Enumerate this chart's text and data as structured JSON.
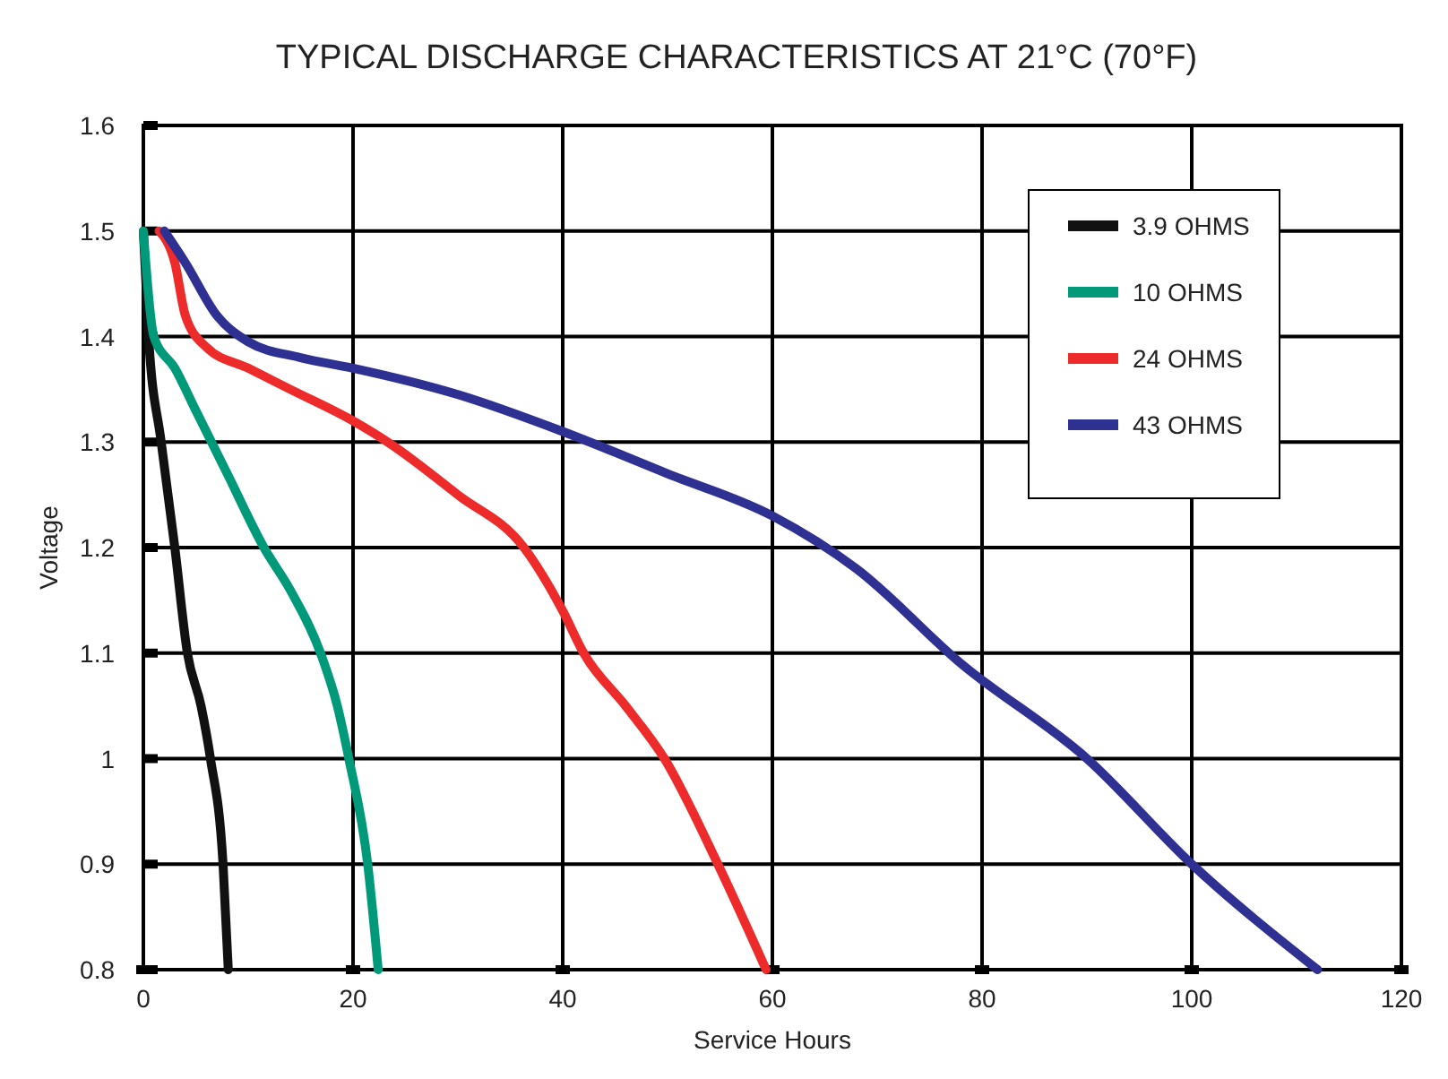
{
  "chart_data": {
    "type": "line",
    "title": "TYPICAL DISCHARGE CHARACTERISTICS AT 21°C (70°F)",
    "xlabel": "Service Hours",
    "ylabel": "Voltage",
    "xlim": [
      0,
      120
    ],
    "xticks": [
      0,
      20,
      40,
      60,
      80,
      100,
      120
    ],
    "ylim": [
      0.8,
      1.6
    ],
    "yticks": [
      0.8,
      0.9,
      1,
      1.1,
      1.2,
      1.3,
      1.4,
      1.5,
      1.6
    ],
    "grid": true,
    "legend": "top right",
    "line_style": "solid",
    "marker": "none",
    "series": [
      {
        "name": "3.9 OHMS",
        "color": "#111111",
        "x": [
          0,
          0.5,
          1.7,
          3,
          4.2,
          5.5,
          6.4,
          7.6,
          8.1
        ],
        "values": [
          1.5,
          1.4,
          1.3,
          1.2,
          1.1,
          1.05,
          1.0,
          0.9,
          0.8
        ]
      },
      {
        "name": "10 OHMS",
        "color": "#009a7a",
        "x": [
          0,
          1,
          3,
          5,
          8,
          11.5,
          14,
          16.9,
          18.5,
          19.6,
          21.4,
          22.4
        ],
        "values": [
          1.5,
          1.4,
          1.37,
          1.33,
          1.27,
          1.2,
          1.16,
          1.1,
          1.05,
          1.0,
          0.9,
          0.8
        ]
      },
      {
        "name": "24 OHMS",
        "color": "#ee2b2b",
        "x": [
          1.5,
          3,
          4,
          6,
          10,
          14,
          20,
          23.3,
          30,
          36.3,
          40,
          42,
          46,
          49.7,
          54.8,
          59.4
        ],
        "values": [
          1.5,
          1.47,
          1.42,
          1.39,
          1.37,
          1.35,
          1.32,
          1.3,
          1.25,
          1.2,
          1.14,
          1.1,
          1.05,
          1.0,
          0.9,
          0.8
        ]
      },
      {
        "name": "43 OHMS",
        "color": "#2e3192",
        "x": [
          2,
          4,
          7,
          10,
          15,
          20,
          30,
          40,
          50,
          60,
          68,
          78,
          90,
          100,
          112
        ],
        "values": [
          1.5,
          1.47,
          1.42,
          1.395,
          1.38,
          1.37,
          1.345,
          1.31,
          1.27,
          1.23,
          1.18,
          1.09,
          1.0,
          0.9,
          0.8
        ]
      }
    ]
  }
}
